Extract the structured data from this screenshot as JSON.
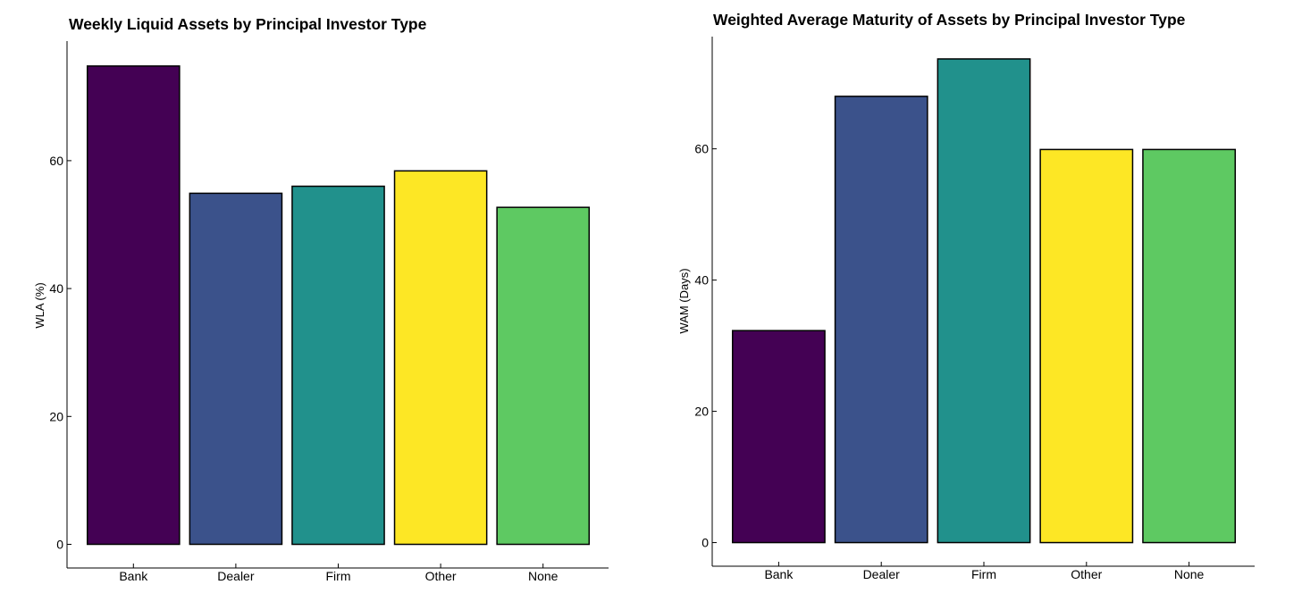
{
  "chart_data": [
    {
      "type": "bar",
      "title": "Weekly Liquid Assets by Principal Investor Type",
      "xlabel": "",
      "ylabel": "WLA (%)",
      "categories": [
        "Bank",
        "Dealer",
        "Firm",
        "Other",
        "None"
      ],
      "values": [
        74.8,
        54.9,
        56.0,
        58.4,
        52.7
      ],
      "colors": [
        "#440154",
        "#3b528b",
        "#21918c",
        "#fde725",
        "#5ec962"
      ],
      "ylim": [
        -3.7,
        78.7
      ],
      "yticks": [
        0,
        20,
        40,
        60
      ],
      "ytick_labels": [
        "0",
        "20",
        "40",
        "60"
      ],
      "grid": false,
      "legend": "none"
    },
    {
      "type": "bar",
      "title": "Weighted Average Maturity of Assets by Principal Investor Type",
      "xlabel": "",
      "ylabel": "WAM (Days)",
      "categories": [
        "Bank",
        "Dealer",
        "Firm",
        "Other",
        "None"
      ],
      "values": [
        32.3,
        68.0,
        73.7,
        59.9,
        59.9
      ],
      "colors": [
        "#440154",
        "#3b528b",
        "#21918c",
        "#fde725",
        "#5ec962"
      ],
      "ylim": [
        -3.6,
        77.1
      ],
      "yticks": [
        0,
        20,
        40,
        60
      ],
      "ytick_labels": [
        "0",
        "20",
        "40",
        "60"
      ],
      "grid": false,
      "legend": "none"
    }
  ]
}
